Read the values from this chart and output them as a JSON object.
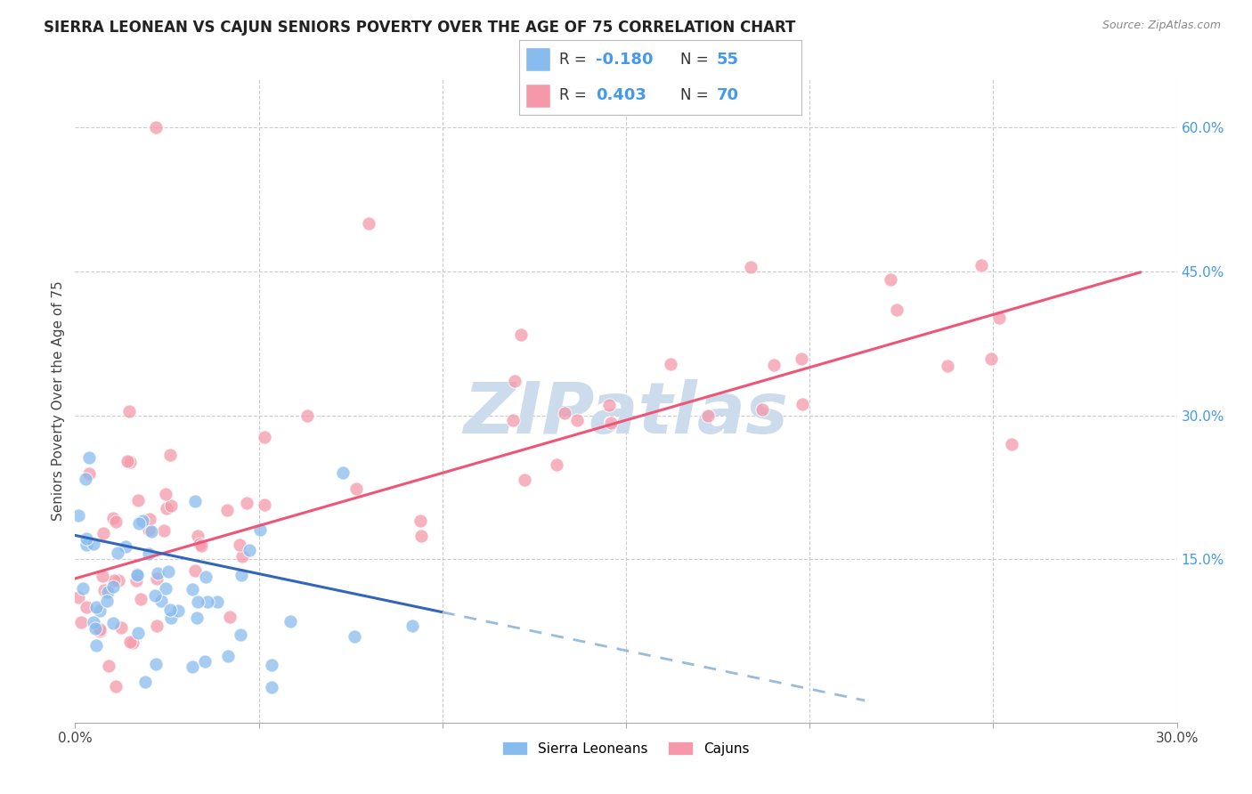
{
  "title": "SIERRA LEONEAN VS CAJUN SENIORS POVERTY OVER THE AGE OF 75 CORRELATION CHART",
  "source": "Source: ZipAtlas.com",
  "ylabel": "Seniors Poverty Over the Age of 75",
  "xlim": [
    0.0,
    0.3
  ],
  "ylim": [
    -0.02,
    0.65
  ],
  "background_color": "#ffffff",
  "grid_color": "#cccccc",
  "watermark_text": "ZIPatlas",
  "watermark_color": "#ccdcec",
  "legend_R1": "-0.180",
  "legend_N1": "55",
  "legend_R2": "0.403",
  "legend_N2": "70",
  "series1_color": "#88bbee",
  "series2_color": "#f599aa",
  "trendline1_solid_color": "#3366bb",
  "trendline1_dash_color": "#99bbdd",
  "trendline2_color": "#ee5577",
  "title_fontsize": 12,
  "right_tick_color": "#4499ee",
  "sl_seed": 12,
  "caj_seed": 7
}
